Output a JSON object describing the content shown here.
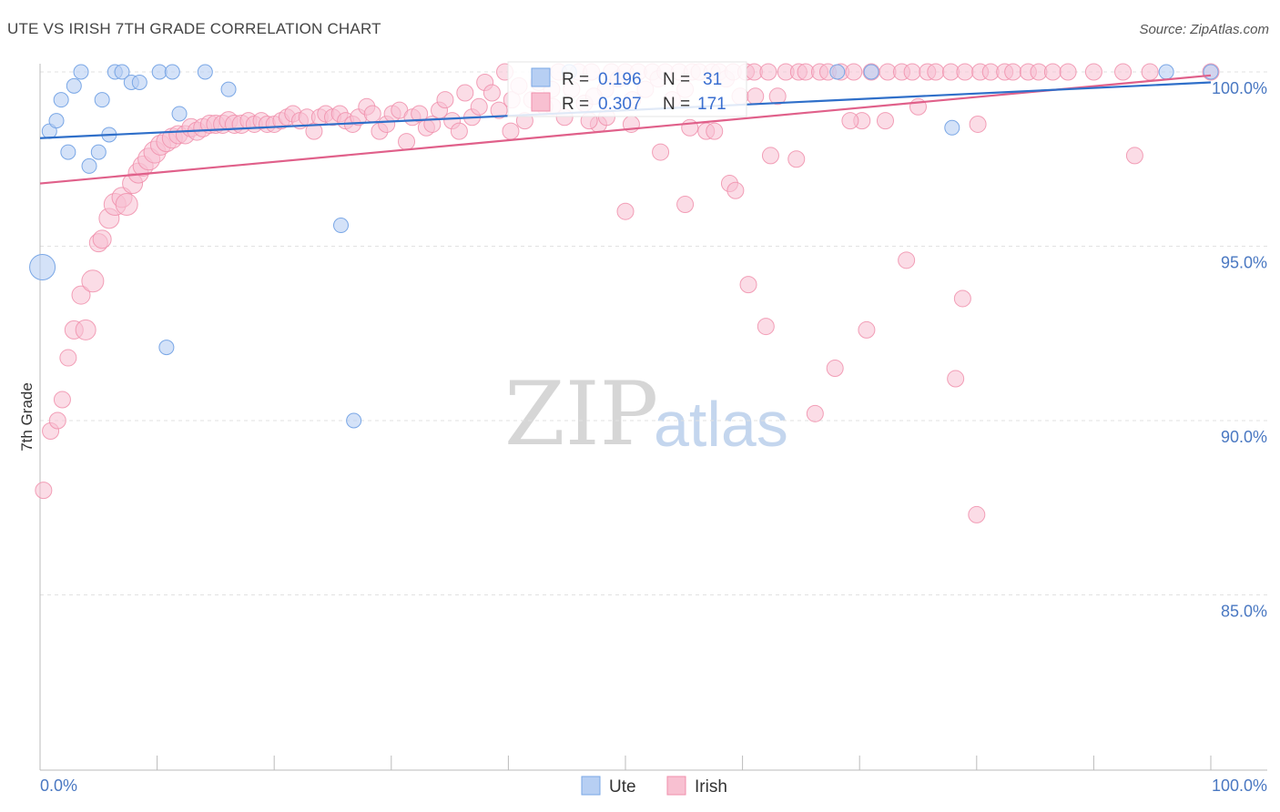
{
  "title": "UTE VS IRISH 7TH GRADE CORRELATION CHART",
  "source": "Source: ZipAtlas.com",
  "watermark": {
    "zip": "ZIP",
    "atlas": "atlas"
  },
  "colors": {
    "ute": "#7aa7e6",
    "ute_fill": "#b7cff3",
    "ute_line": "#2f6fc9",
    "irish": "#f08fac",
    "irish_fill": "#f8c0d1",
    "irish_line": "#e0608a"
  },
  "legend": {
    "rows": [
      {
        "r_label": "R =",
        "r_value": "0.196",
        "n_label": "N =",
        "n_value": "31"
      },
      {
        "r_label": "R =",
        "r_value": "0.307",
        "n_label": "N =",
        "n_value": "171"
      }
    ]
  },
  "chart_data": {
    "type": "scatter",
    "title": "UTE VS IRISH 7TH GRADE CORRELATION CHART",
    "xlabel": "",
    "ylabel": "7th Grade",
    "xlim": [
      0,
      100
    ],
    "ylim": [
      80.5,
      100.5
    ],
    "x_tick_labels": [
      "0.0%",
      "100.0%"
    ],
    "y_ticks": [
      85,
      90,
      95,
      100
    ],
    "y_tick_labels": [
      "85.0%",
      "90.0%",
      "95.0%",
      "100.0%"
    ],
    "grid": true,
    "legend_position": "top-center",
    "series": [
      {
        "name": "Ute",
        "r": 0.196,
        "n": 31,
        "trend": [
          [
            0,
            98.1
          ],
          [
            100,
            99.7
          ]
        ],
        "points": [
          [
            0.2,
            94.4,
            14
          ],
          [
            0.8,
            98.3,
            8
          ],
          [
            1.4,
            98.6,
            8
          ],
          [
            1.8,
            99.2,
            8
          ],
          [
            2.4,
            97.7,
            8
          ],
          [
            2.9,
            99.6,
            8
          ],
          [
            3.5,
            100.0,
            8
          ],
          [
            4.2,
            97.3,
            8
          ],
          [
            5.0,
            97.7,
            8
          ],
          [
            5.3,
            99.2,
            8
          ],
          [
            5.9,
            98.2,
            8
          ],
          [
            6.4,
            100.0,
            8
          ],
          [
            7.0,
            100.0,
            8
          ],
          [
            7.8,
            99.7,
            8
          ],
          [
            8.5,
            99.7,
            8
          ],
          [
            10.2,
            100.0,
            8
          ],
          [
            10.8,
            92.1,
            8
          ],
          [
            11.3,
            100.0,
            8
          ],
          [
            11.9,
            98.8,
            8
          ],
          [
            14.1,
            100.0,
            8
          ],
          [
            16.1,
            99.5,
            8
          ],
          [
            25.7,
            95.6,
            8
          ],
          [
            26.8,
            90.0,
            8
          ],
          [
            45.2,
            100.0,
            8
          ],
          [
            68.1,
            100.0,
            8
          ],
          [
            71.0,
            100.0,
            8
          ],
          [
            77.9,
            98.4,
            8
          ],
          [
            96.2,
            100.0,
            8
          ],
          [
            100.0,
            100.0,
            8
          ]
        ]
      },
      {
        "name": "Irish",
        "r": 0.307,
        "n": 171,
        "trend": [
          [
            0,
            96.8
          ],
          [
            100,
            99.9
          ]
        ],
        "points": [
          [
            0.3,
            88.0,
            9
          ],
          [
            0.9,
            89.7,
            9
          ],
          [
            1.5,
            90.0,
            9
          ],
          [
            1.9,
            90.6,
            9
          ],
          [
            2.4,
            91.8,
            9
          ],
          [
            2.9,
            92.6,
            10
          ],
          [
            3.5,
            93.6,
            10
          ],
          [
            3.9,
            92.6,
            11
          ],
          [
            4.5,
            94.0,
            12
          ],
          [
            5.0,
            95.1,
            10
          ],
          [
            5.3,
            95.2,
            10
          ],
          [
            5.9,
            95.8,
            11
          ],
          [
            6.4,
            96.2,
            12
          ],
          [
            7.0,
            96.4,
            11
          ],
          [
            7.4,
            96.2,
            12
          ],
          [
            7.9,
            96.8,
            11
          ],
          [
            8.4,
            97.1,
            11
          ],
          [
            8.8,
            97.3,
            11
          ],
          [
            9.3,
            97.5,
            12
          ],
          [
            9.8,
            97.7,
            12
          ],
          [
            10.3,
            97.9,
            11
          ],
          [
            10.8,
            98.0,
            11
          ],
          [
            11.3,
            98.1,
            11
          ],
          [
            11.8,
            98.2,
            10
          ],
          [
            12.4,
            98.2,
            10
          ],
          [
            12.9,
            98.4,
            10
          ],
          [
            13.4,
            98.3,
            10
          ],
          [
            13.9,
            98.4,
            10
          ],
          [
            14.5,
            98.5,
            10
          ],
          [
            15.0,
            98.5,
            10
          ],
          [
            15.6,
            98.5,
            10
          ],
          [
            16.1,
            98.6,
            10
          ],
          [
            16.6,
            98.5,
            10
          ],
          [
            17.2,
            98.5,
            10
          ],
          [
            17.8,
            98.6,
            9
          ],
          [
            18.3,
            98.5,
            9
          ],
          [
            18.9,
            98.6,
            9
          ],
          [
            19.4,
            98.5,
            9
          ],
          [
            20.0,
            98.5,
            9
          ],
          [
            20.6,
            98.6,
            9
          ],
          [
            21.1,
            98.7,
            9
          ],
          [
            21.6,
            98.8,
            9
          ],
          [
            22.2,
            98.6,
            9
          ],
          [
            22.8,
            98.7,
            9
          ],
          [
            23.4,
            98.3,
            9
          ],
          [
            23.9,
            98.7,
            9
          ],
          [
            24.4,
            98.8,
            9
          ],
          [
            25.0,
            98.7,
            9
          ],
          [
            25.6,
            98.8,
            9
          ],
          [
            26.1,
            98.6,
            9
          ],
          [
            26.7,
            98.5,
            9
          ],
          [
            27.2,
            98.7,
            9
          ],
          [
            27.9,
            99.0,
            9
          ],
          [
            28.4,
            98.8,
            9
          ],
          [
            29.0,
            98.3,
            9
          ],
          [
            29.6,
            98.5,
            9
          ],
          [
            30.1,
            98.8,
            9
          ],
          [
            30.7,
            98.9,
            9
          ],
          [
            31.3,
            98.0,
            9
          ],
          [
            31.8,
            98.7,
            9
          ],
          [
            32.4,
            98.8,
            9
          ],
          [
            33.0,
            98.4,
            9
          ],
          [
            33.5,
            98.5,
            9
          ],
          [
            34.1,
            98.9,
            9
          ],
          [
            34.6,
            99.2,
            9
          ],
          [
            35.2,
            98.6,
            9
          ],
          [
            35.8,
            98.3,
            9
          ],
          [
            36.3,
            99.4,
            9
          ],
          [
            36.9,
            98.7,
            9
          ],
          [
            37.5,
            99.0,
            9
          ],
          [
            38.0,
            99.7,
            9
          ],
          [
            38.6,
            99.4,
            9
          ],
          [
            39.2,
            98.9,
            9
          ],
          [
            39.7,
            100.0,
            9
          ],
          [
            40.3,
            99.2,
            9
          ],
          [
            40.9,
            99.6,
            9
          ],
          [
            41.4,
            98.6,
            9
          ],
          [
            42.0,
            99.2,
            9
          ],
          [
            42.6,
            99.7,
            9
          ],
          [
            43.1,
            99.0,
            9
          ],
          [
            43.7,
            99.5,
            9
          ],
          [
            44.3,
            100.0,
            9
          ],
          [
            44.8,
            98.7,
            9
          ],
          [
            45.4,
            99.5,
            9
          ],
          [
            46.0,
            100.0,
            9
          ],
          [
            46.5,
            99.1,
            9
          ],
          [
            47.1,
            100.0,
            9
          ],
          [
            47.7,
            98.5,
            9
          ],
          [
            48.3,
            99.5,
            9
          ],
          [
            48.8,
            100.0,
            9
          ],
          [
            49.4,
            99.8,
            9
          ],
          [
            50.0,
            100.0,
            9
          ],
          [
            50.6,
            99.2,
            9
          ],
          [
            51.1,
            100.0,
            9
          ],
          [
            51.7,
            99.5,
            9
          ],
          [
            52.3,
            100.0,
            9
          ],
          [
            52.8,
            99.8,
            9
          ],
          [
            53.4,
            100.0,
            9
          ],
          [
            54.0,
            99.2,
            9
          ],
          [
            54.6,
            100.0,
            9
          ],
          [
            55.1,
            99.5,
            9
          ],
          [
            55.7,
            100.0,
            9
          ],
          [
            56.3,
            100.0,
            9
          ],
          [
            56.9,
            98.3,
            9
          ],
          [
            57.4,
            100.0,
            9
          ],
          [
            58.0,
            100.0,
            9
          ],
          [
            58.6,
            99.8,
            9
          ],
          [
            59.2,
            100.0,
            9
          ],
          [
            59.8,
            99.3,
            9
          ],
          [
            60.3,
            100.0,
            9
          ],
          [
            61.0,
            100.0,
            9
          ],
          [
            62.2,
            100.0,
            9
          ],
          [
            63.0,
            99.3,
            9
          ],
          [
            63.7,
            100.0,
            9
          ],
          [
            64.8,
            100.0,
            9
          ],
          [
            65.4,
            100.0,
            9
          ],
          [
            66.6,
            100.0,
            9
          ],
          [
            67.3,
            100.0,
            9
          ],
          [
            68.4,
            100.0,
            9
          ],
          [
            69.5,
            100.0,
            9
          ],
          [
            70.2,
            98.6,
            9
          ],
          [
            71.0,
            100.0,
            9
          ],
          [
            72.4,
            100.0,
            9
          ],
          [
            73.6,
            100.0,
            9
          ],
          [
            74.5,
            100.0,
            9
          ],
          [
            75.8,
            100.0,
            9
          ],
          [
            76.5,
            100.0,
            9
          ],
          [
            77.8,
            100.0,
            9
          ],
          [
            79.0,
            100.0,
            9
          ],
          [
            80.3,
            100.0,
            9
          ],
          [
            81.2,
            100.0,
            9
          ],
          [
            82.4,
            100.0,
            9
          ],
          [
            83.1,
            100.0,
            9
          ],
          [
            84.4,
            100.0,
            9
          ],
          [
            85.3,
            100.0,
            9
          ],
          [
            86.5,
            100.0,
            9
          ],
          [
            87.8,
            100.0,
            9
          ],
          [
            90.0,
            100.0,
            9
          ],
          [
            92.5,
            100.0,
            9
          ],
          [
            94.8,
            100.0,
            9
          ],
          [
            100.0,
            100.0,
            9
          ],
          [
            40.2,
            98.3,
            9
          ],
          [
            43.8,
            99.0,
            9
          ],
          [
            47.3,
            99.3,
            9
          ],
          [
            50.5,
            98.5,
            9
          ],
          [
            53.0,
            97.7,
            9
          ],
          [
            55.5,
            98.4,
            9
          ],
          [
            57.6,
            98.3,
            9
          ],
          [
            58.9,
            96.8,
            9
          ],
          [
            59.4,
            96.6,
            9
          ],
          [
            62.4,
            97.6,
            9
          ],
          [
            64.6,
            97.5,
            9
          ],
          [
            69.2,
            98.6,
            9
          ],
          [
            74.0,
            94.6,
            9
          ],
          [
            78.8,
            93.5,
            9
          ],
          [
            80.1,
            98.5,
            9
          ],
          [
            93.5,
            97.6,
            9
          ],
          [
            50.0,
            96.0,
            9
          ],
          [
            55.1,
            96.2,
            9
          ],
          [
            60.5,
            93.9,
            9
          ],
          [
            62.0,
            92.7,
            9
          ],
          [
            67.9,
            91.5,
            9
          ],
          [
            70.6,
            92.6,
            9
          ],
          [
            78.2,
            91.2,
            9
          ],
          [
            66.2,
            90.2,
            9
          ],
          [
            80.0,
            87.3,
            9
          ],
          [
            72.2,
            98.6,
            9
          ],
          [
            75.0,
            99.0,
            9
          ],
          [
            61.1,
            99.3,
            9
          ],
          [
            46.9,
            98.6,
            9
          ],
          [
            48.4,
            98.7,
            9
          ]
        ]
      }
    ]
  },
  "bottom_legend": [
    {
      "label": "Ute"
    },
    {
      "label": "Irish"
    }
  ]
}
